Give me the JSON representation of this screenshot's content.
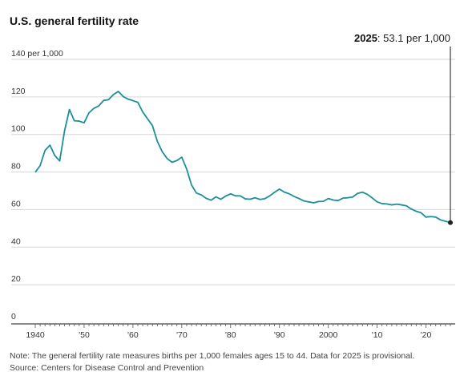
{
  "chart_data": {
    "type": "line",
    "title": "U.S. general fertility rate",
    "y_unit_label": "per 1,000",
    "ylim": [
      0,
      140
    ],
    "y_ticks": [
      0,
      20,
      40,
      60,
      80,
      100,
      120,
      140
    ],
    "xlim": [
      1938,
      2025.5
    ],
    "x_ticks": [
      1940,
      1950,
      1960,
      1970,
      1980,
      1990,
      2000,
      2010,
      2020
    ],
    "x_tick_labels": [
      "1940",
      "'50",
      "'60",
      "'70",
      "'80",
      "'90",
      "2000",
      "'10",
      "'20"
    ],
    "grid": true,
    "line_color": "#1b8f9b",
    "series": [
      {
        "x": [
          1940,
          1941,
          1942,
          1943,
          1944,
          1945,
          1946,
          1947,
          1948,
          1949,
          1950,
          1951,
          1952,
          1953,
          1954,
          1955,
          1956,
          1957,
          1958,
          1959,
          1960,
          1961,
          1962,
          1963,
          1964,
          1965,
          1966,
          1967,
          1968,
          1969,
          1970,
          1971,
          1972,
          1973,
          1974,
          1975,
          1976,
          1977,
          1978,
          1979,
          1980,
          1981,
          1982,
          1983,
          1984,
          1985,
          1986,
          1987,
          1988,
          1989,
          1990,
          1991,
          1992,
          1993,
          1994,
          1995,
          1996,
          1997,
          1998,
          1999,
          2000,
          2001,
          2002,
          2003,
          2004,
          2005,
          2006,
          2007,
          2008,
          2009,
          2010,
          2011,
          2012,
          2013,
          2014,
          2015,
          2016,
          2017,
          2018,
          2019,
          2020,
          2021,
          2022,
          2023,
          2024,
          2025
        ],
        "values": [
          79.9,
          83.4,
          91.5,
          94.3,
          88.8,
          85.9,
          101.9,
          113.3,
          107.3,
          107.1,
          106.2,
          111.5,
          113.9,
          115.2,
          118.1,
          118.5,
          121.2,
          122.9,
          120.2,
          118.8,
          118.0,
          117.1,
          112.0,
          108.3,
          104.7,
          96.3,
          90.8,
          87.2,
          85.2,
          86.1,
          87.9,
          81.6,
          73.1,
          68.8,
          67.8,
          66.0,
          65.0,
          66.8,
          65.5,
          67.2,
          68.4,
          67.3,
          67.3,
          65.7,
          65.5,
          66.3,
          65.4,
          65.8,
          67.3,
          69.2,
          70.9,
          69.3,
          68.4,
          67.0,
          65.9,
          64.6,
          64.1,
          63.6,
          64.3,
          64.4,
          65.9,
          65.1,
          64.8,
          66.1,
          66.3,
          66.7,
          68.6,
          69.3,
          68.1,
          66.2,
          64.1,
          63.2,
          63.0,
          62.5,
          62.9,
          62.5,
          62.0,
          60.3,
          59.1,
          58.3,
          56.0,
          56.3,
          56.0,
          54.5,
          53.8,
          53.1
        ]
      }
    ],
    "callout": {
      "year": "2025",
      "text": ": 53.1 per 1,000",
      "x": 2025,
      "value": 53.1
    }
  },
  "note": "Note: The general fertility rate measures births per 1,000 females ages 15 to 44. Data for 2025 is provisional.",
  "source": "Source: Centers for Disease Control and Prevention"
}
